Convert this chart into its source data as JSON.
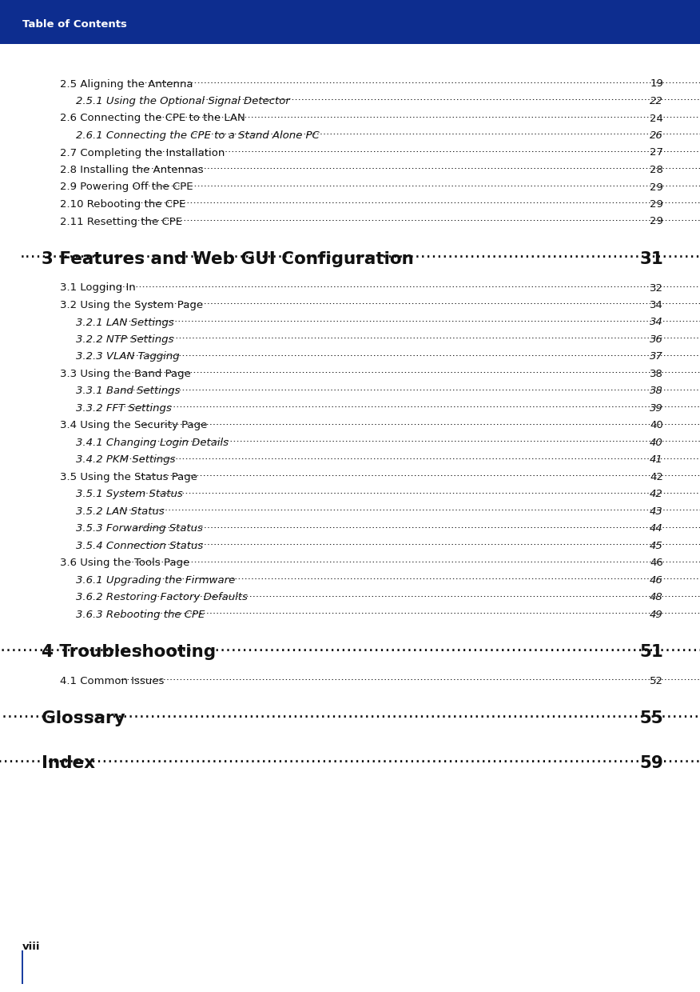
{
  "header_bg": "#0d2d8f",
  "header_text": "Table of Contents",
  "header_text_color": "#ffffff",
  "page_bg": "#ffffff",
  "footer_text": "viii",
  "footer_bar_color": "#1a3fa0",
  "entries": [
    {
      "text": "2.5 Aligning the Antenna  ",
      "page": "19",
      "indent": 1,
      "style": "normal",
      "large": false,
      "spacer_before": true
    },
    {
      "text": "2.5.1 Using the Optional Signal Detector ",
      "page": "22",
      "indent": 2,
      "style": "italic",
      "large": false,
      "spacer_before": false
    },
    {
      "text": "2.6 Connecting the CPE to the LAN ",
      "page": "24",
      "indent": 1,
      "style": "normal",
      "large": false,
      "spacer_before": false
    },
    {
      "text": "2.6.1 Connecting the CPE to a Stand Alone PC ",
      "page": "26",
      "indent": 2,
      "style": "italic",
      "large": false,
      "spacer_before": false
    },
    {
      "text": "2.7 Completing the Installation ",
      "page": "27",
      "indent": 1,
      "style": "normal",
      "large": false,
      "spacer_before": false
    },
    {
      "text": "2.8 Installing the Antennas ",
      "page": "28",
      "indent": 1,
      "style": "normal",
      "large": false,
      "spacer_before": false
    },
    {
      "text": "2.9 Powering Off the CPE  ",
      "page": "29",
      "indent": 1,
      "style": "normal",
      "large": false,
      "spacer_before": false
    },
    {
      "text": "2.10 Rebooting the CPE  ",
      "page": "29",
      "indent": 1,
      "style": "normal",
      "large": false,
      "spacer_before": false
    },
    {
      "text": "2.11 Resetting the CPE ",
      "page": "29",
      "indent": 1,
      "style": "normal",
      "large": false,
      "spacer_before": false
    },
    {
      "text": "3 Features and Web GUI Configuration ",
      "page": "31",
      "indent": 0,
      "style": "bold",
      "large": true,
      "spacer_before": true
    },
    {
      "text": "3.1 Logging In  ",
      "page": "32",
      "indent": 1,
      "style": "normal",
      "large": false,
      "spacer_before": true
    },
    {
      "text": "3.2 Using the System Page ",
      "page": "34",
      "indent": 1,
      "style": "normal",
      "large": false,
      "spacer_before": false
    },
    {
      "text": "3.2.1 LAN Settings ",
      "page": "34",
      "indent": 2,
      "style": "italic",
      "large": false,
      "spacer_before": false
    },
    {
      "text": "3.2.2 NTP Settings",
      "page": "36",
      "indent": 2,
      "style": "italic",
      "large": false,
      "spacer_before": false
    },
    {
      "text": "3.2.3 VLAN Tagging",
      "page": "37",
      "indent": 2,
      "style": "italic",
      "large": false,
      "spacer_before": false
    },
    {
      "text": "3.3 Using the Band Page  ",
      "page": "38",
      "indent": 1,
      "style": "normal",
      "large": false,
      "spacer_before": false
    },
    {
      "text": "3.3.1 Band Settings",
      "page": "38",
      "indent": 2,
      "style": "italic",
      "large": false,
      "spacer_before": false
    },
    {
      "text": "3.3.2 FFT Settings ",
      "page": "39",
      "indent": 2,
      "style": "italic",
      "large": false,
      "spacer_before": false
    },
    {
      "text": "3.4 Using the Security Page ",
      "page": "40",
      "indent": 1,
      "style": "normal",
      "large": false,
      "spacer_before": false
    },
    {
      "text": "3.4.1 Changing Login Details",
      "page": "40",
      "indent": 2,
      "style": "italic",
      "large": false,
      "spacer_before": false
    },
    {
      "text": "3.4.2 PKM Settings ",
      "page": "41",
      "indent": 2,
      "style": "italic",
      "large": false,
      "spacer_before": false
    },
    {
      "text": "3.5 Using the Status Page  ",
      "page": "42",
      "indent": 1,
      "style": "normal",
      "large": false,
      "spacer_before": false
    },
    {
      "text": "3.5.1 System Status ",
      "page": "42",
      "indent": 2,
      "style": "italic",
      "large": false,
      "spacer_before": false
    },
    {
      "text": "3.5.2 LAN Status",
      "page": "43",
      "indent": 2,
      "style": "italic",
      "large": false,
      "spacer_before": false
    },
    {
      "text": "3.5.3 Forwarding Status",
      "page": "44",
      "indent": 2,
      "style": "italic",
      "large": false,
      "spacer_before": false
    },
    {
      "text": "3.5.4 Connection Status",
      "page": "45",
      "indent": 2,
      "style": "italic",
      "large": false,
      "spacer_before": false
    },
    {
      "text": "3.6 Using the Tools Page ",
      "page": "46",
      "indent": 1,
      "style": "normal",
      "large": false,
      "spacer_before": false
    },
    {
      "text": "3.6.1 Upgrading the Firmware ",
      "page": "46",
      "indent": 2,
      "style": "italic",
      "large": false,
      "spacer_before": false
    },
    {
      "text": "3.6.2 Restoring Factory Defaults",
      "page": "48",
      "indent": 2,
      "style": "italic",
      "large": false,
      "spacer_before": false
    },
    {
      "text": "3.6.3 Rebooting the CPE ",
      "page": "49",
      "indent": 2,
      "style": "italic",
      "large": false,
      "spacer_before": false
    },
    {
      "text": "4 Troubleshooting  ",
      "page": "51",
      "indent": 0,
      "style": "bold",
      "large": true,
      "spacer_before": true
    },
    {
      "text": "4.1 Common Issues  ",
      "page": "52",
      "indent": 1,
      "style": "normal",
      "large": false,
      "spacer_before": true
    },
    {
      "text": "Glossary ",
      "page": "55",
      "indent": 0,
      "style": "bold",
      "large": true,
      "spacer_before": true
    },
    {
      "text": "Index ",
      "page": "59",
      "indent": 0,
      "style": "bold",
      "large": true,
      "spacer_before": true
    }
  ]
}
